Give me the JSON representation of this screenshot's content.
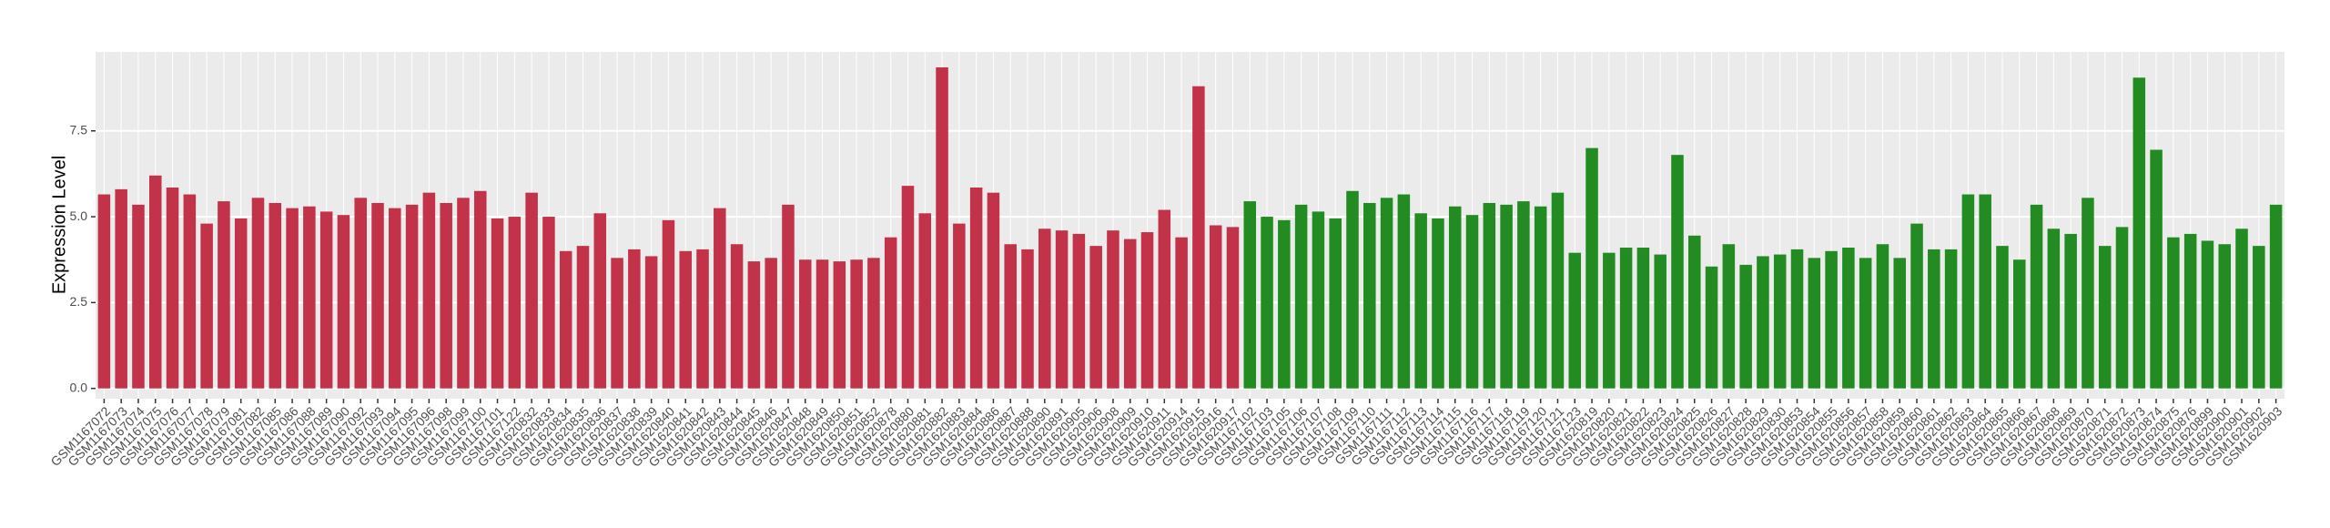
{
  "chart_data": {
    "type": "bar",
    "y_label": "Expression Level",
    "categories": [
      "GSM1167072",
      "GSM1167073",
      "GSM1167074",
      "GSM1167075",
      "GSM1167076",
      "GSM1167077",
      "GSM1167078",
      "GSM1167079",
      "GSM1167081",
      "GSM1167082",
      "GSM1167085",
      "GSM1167086",
      "GSM1167088",
      "GSM1167089",
      "GSM1167090",
      "GSM1167092",
      "GSM1167093",
      "GSM1167094",
      "GSM1167095",
      "GSM1167096",
      "GSM1167098",
      "GSM1167099",
      "GSM1167100",
      "GSM1167101",
      "GSM1167122",
      "GSM1620832",
      "GSM1620833",
      "GSM1620834",
      "GSM1620835",
      "GSM1620836",
      "GSM1620837",
      "GSM1620838",
      "GSM1620839",
      "GSM1620840",
      "GSM1620841",
      "GSM1620842",
      "GSM1620843",
      "GSM1620844",
      "GSM1620845",
      "GSM1620846",
      "GSM1620847",
      "GSM1620848",
      "GSM1620849",
      "GSM1620850",
      "GSM1620851",
      "GSM1620852",
      "GSM1620878",
      "GSM1620880",
      "GSM1620881",
      "GSM1620882",
      "GSM1620883",
      "GSM1620884",
      "GSM1620886",
      "GSM1620887",
      "GSM1620888",
      "GSM1620890",
      "GSM1620891",
      "GSM1620905",
      "GSM1620906",
      "GSM1620908",
      "GSM1620909",
      "GSM1620910",
      "GSM1620911",
      "GSM1620914",
      "GSM1620915",
      "GSM1620916",
      "GSM1620917",
      "GSM1167102",
      "GSM1167103",
      "GSM1167105",
      "GSM1167106",
      "GSM1167107",
      "GSM1167108",
      "GSM1167109",
      "GSM1167110",
      "GSM1167111",
      "GSM1167112",
      "GSM1167113",
      "GSM1167114",
      "GSM1167115",
      "GSM1167116",
      "GSM1167117",
      "GSM1167118",
      "GSM1167119",
      "GSM1167120",
      "GSM1167121",
      "GSM1167123",
      "GSM1620819",
      "GSM1620820",
      "GSM1620821",
      "GSM1620822",
      "GSM1620823",
      "GSM1620824",
      "GSM1620825",
      "GSM1620826",
      "GSM1620827",
      "GSM1620828",
      "GSM1620829",
      "GSM1620830",
      "GSM1620853",
      "GSM1620854",
      "GSM1620855",
      "GSM1620856",
      "GSM1620857",
      "GSM1620858",
      "GSM1620859",
      "GSM1620860",
      "GSM1620861",
      "GSM1620862",
      "GSM1620863",
      "GSM1620864",
      "GSM1620865",
      "GSM1620866",
      "GSM1620867",
      "GSM1620868",
      "GSM1620869",
      "GSM1620870",
      "GSM1620871",
      "GSM1620872",
      "GSM1620873",
      "GSM1620874",
      "GSM1620875",
      "GSM1620876",
      "GSM1620899",
      "GSM1620900",
      "GSM1620901",
      "GSM1620902",
      "GSM1620903"
    ],
    "values": [
      5.65,
      5.8,
      5.35,
      6.2,
      5.85,
      5.65,
      4.8,
      5.45,
      4.95,
      5.55,
      5.4,
      5.25,
      5.3,
      5.15,
      5.05,
      5.55,
      5.4,
      5.25,
      5.35,
      5.7,
      5.4,
      5.55,
      5.75,
      4.95,
      5.0,
      5.7,
      5.0,
      4.0,
      4.15,
      5.1,
      3.8,
      4.05,
      3.85,
      4.9,
      4.0,
      4.05,
      5.25,
      4.2,
      3.7,
      3.8,
      5.35,
      3.75,
      3.75,
      3.7,
      3.75,
      3.8,
      4.4,
      5.9,
      5.1,
      9.35,
      4.8,
      5.85,
      5.7,
      4.2,
      4.05,
      4.65,
      4.6,
      4.5,
      4.15,
      4.6,
      4.35,
      4.55,
      5.2,
      4.4,
      8.8,
      4.75,
      4.7,
      5.45,
      5.0,
      4.9,
      5.35,
      5.15,
      4.95,
      5.75,
      5.4,
      5.55,
      5.65,
      5.1,
      4.95,
      5.3,
      5.05,
      5.4,
      5.35,
      5.45,
      5.3,
      5.7,
      3.95,
      7.0,
      3.95,
      4.1,
      4.1,
      3.9,
      6.8,
      4.45,
      3.55,
      4.2,
      3.6,
      3.85,
      3.9,
      4.05,
      3.8,
      4.0,
      4.1,
      3.8,
      4.2,
      3.8,
      4.8,
      4.05,
      4.05,
      5.65,
      5.65,
      4.15,
      3.75,
      5.35,
      4.65,
      4.5,
      5.55,
      4.15,
      4.7,
      9.05,
      6.95,
      4.4,
      4.5,
      4.3,
      4.2,
      4.65,
      4.15,
      5.35
    ],
    "colors": [
      "#c23349",
      "#c23349",
      "#c23349",
      "#c23349",
      "#c23349",
      "#c23349",
      "#c23349",
      "#c23349",
      "#c23349",
      "#c23349",
      "#c23349",
      "#c23349",
      "#c23349",
      "#c23349",
      "#c23349",
      "#c23349",
      "#c23349",
      "#c23349",
      "#c23349",
      "#c23349",
      "#c23349",
      "#c23349",
      "#c23349",
      "#c23349",
      "#c23349",
      "#c23349",
      "#c23349",
      "#c23349",
      "#c23349",
      "#c23349",
      "#c23349",
      "#c23349",
      "#c23349",
      "#c23349",
      "#c23349",
      "#c23349",
      "#c23349",
      "#c23349",
      "#c23349",
      "#c23349",
      "#c23349",
      "#c23349",
      "#c23349",
      "#c23349",
      "#c23349",
      "#c23349",
      "#c23349",
      "#c23349",
      "#c23349",
      "#c23349",
      "#c23349",
      "#c23349",
      "#c23349",
      "#c23349",
      "#c23349",
      "#c23349",
      "#c23349",
      "#c23349",
      "#c23349",
      "#c23349",
      "#c23349",
      "#c23349",
      "#c23349",
      "#c23349",
      "#c23349",
      "#c23349",
      "#c23349",
      "#228b22",
      "#228b22",
      "#228b22",
      "#228b22",
      "#228b22",
      "#228b22",
      "#228b22",
      "#228b22",
      "#228b22",
      "#228b22",
      "#228b22",
      "#228b22",
      "#228b22",
      "#228b22",
      "#228b22",
      "#228b22",
      "#228b22",
      "#228b22",
      "#228b22",
      "#228b22",
      "#228b22",
      "#228b22",
      "#228b22",
      "#228b22",
      "#228b22",
      "#228b22",
      "#228b22",
      "#228b22",
      "#228b22",
      "#228b22",
      "#228b22",
      "#228b22",
      "#228b22",
      "#228b22",
      "#228b22",
      "#228b22",
      "#228b22",
      "#228b22",
      "#228b22",
      "#228b22",
      "#228b22",
      "#228b22",
      "#228b22",
      "#228b22",
      "#228b22",
      "#228b22",
      "#228b22",
      "#228b22",
      "#228b22",
      "#228b22",
      "#228b22",
      "#228b22",
      "#228b22",
      "#228b22",
      "#228b22",
      "#228b22",
      "#228b22",
      "#228b22",
      "#228b22",
      "#228b22",
      "#228b22"
    ],
    "ylim": [
      -0.3,
      9.8
    ],
    "yticks": [
      {
        "value": 0,
        "label": "0.0"
      },
      {
        "value": 2.5,
        "label": "2.5"
      },
      {
        "value": 5,
        "label": "5.0"
      },
      {
        "value": 7.5,
        "label": "7.5"
      }
    ],
    "grid": true
  }
}
